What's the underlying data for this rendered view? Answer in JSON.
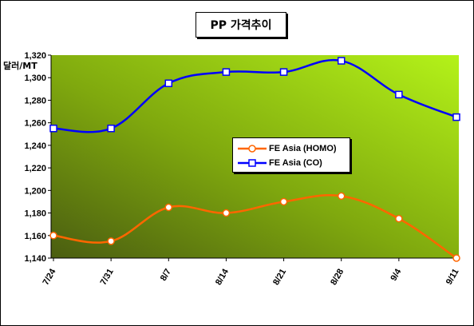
{
  "chart_data": {
    "type": "line",
    "title": "PP 가격추이",
    "ylabel": "달러/MT",
    "categories": [
      "7/24",
      "7/31",
      "8/7",
      "8/14",
      "8/21",
      "8/28",
      "9/4",
      "9/11"
    ],
    "ylim": [
      1140,
      1320
    ],
    "yticks": [
      "1,140",
      "1,160",
      "1,180",
      "1,200",
      "1,220",
      "1,240",
      "1,260",
      "1,280",
      "1,300",
      "1,320"
    ],
    "yticks_values": [
      1140,
      1160,
      1180,
      1200,
      1220,
      1240,
      1260,
      1280,
      1300,
      1320
    ],
    "grid": false,
    "legend_position": "center",
    "series": [
      {
        "name": "FE Asia (HOMO)",
        "color": "#ff6600",
        "marker": "circle",
        "values": [
          1160,
          1155,
          1185,
          1180,
          1190,
          1195,
          1175,
          1140
        ]
      },
      {
        "name": "FE Asia (CO)",
        "color": "#0000ff",
        "marker": "square",
        "values": [
          1255,
          1255,
          1295,
          1305,
          1305,
          1315,
          1285,
          1265
        ]
      }
    ]
  }
}
